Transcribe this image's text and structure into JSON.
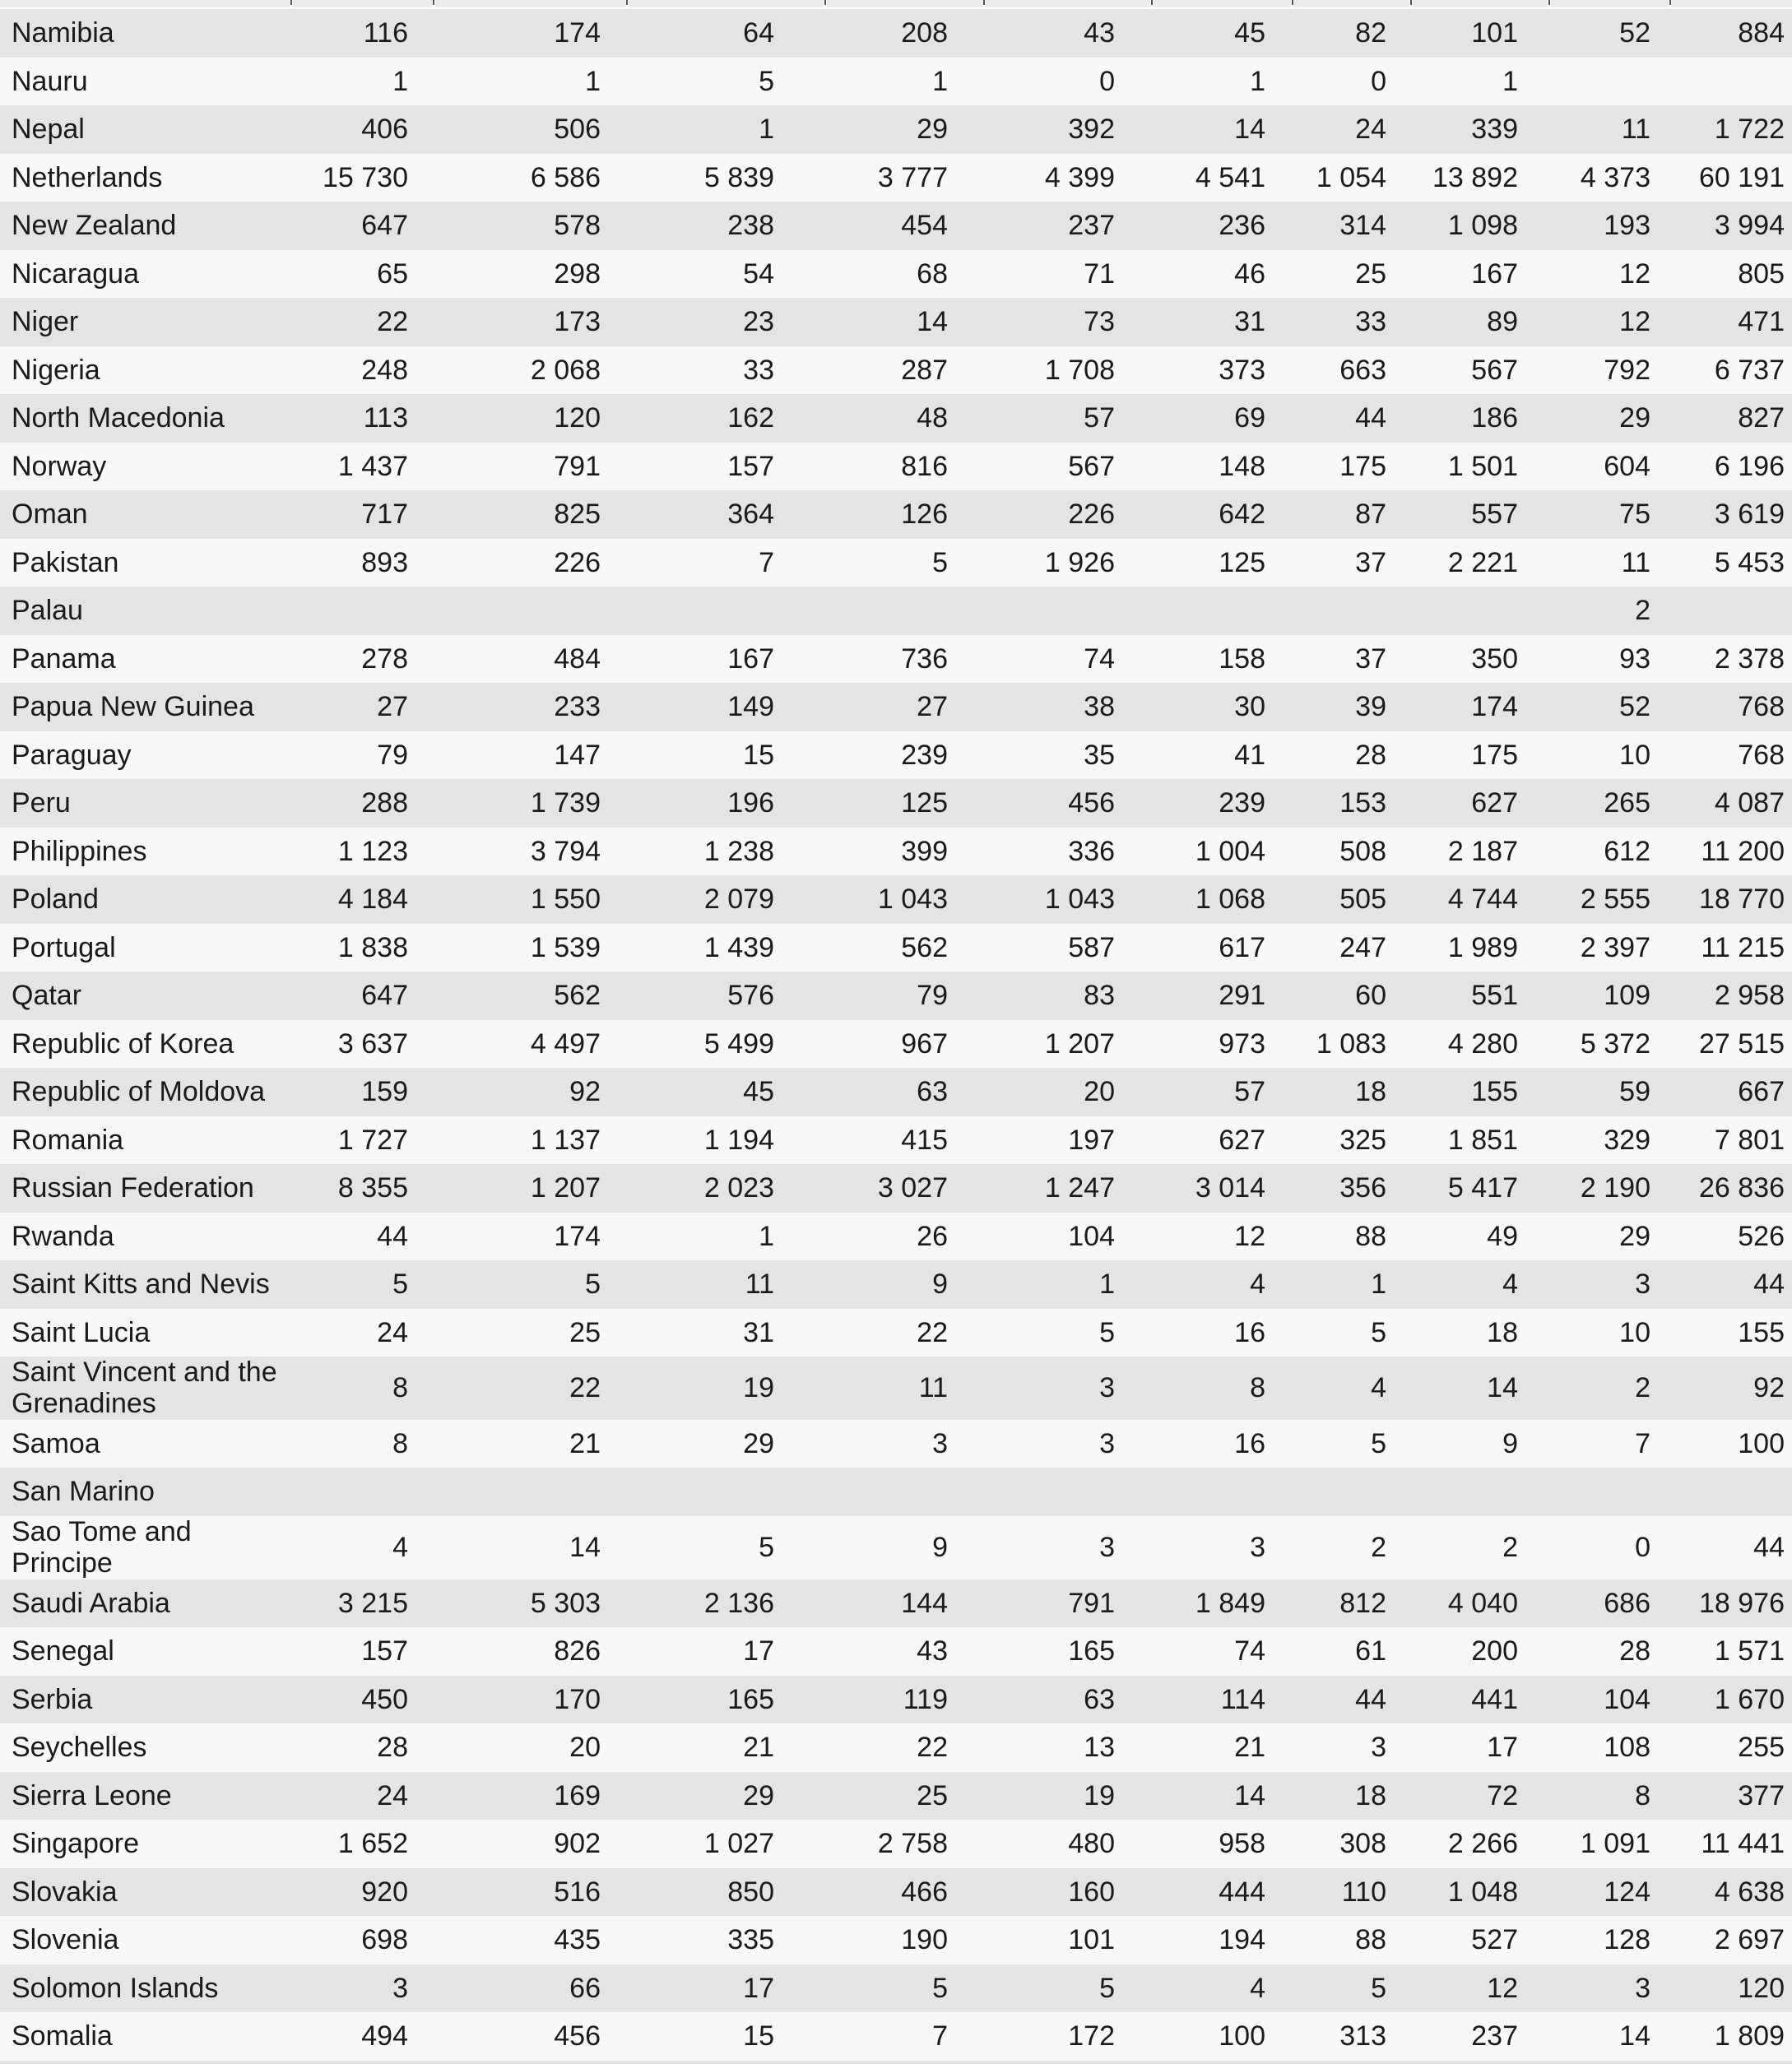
{
  "colors": {
    "row_gray": "#e4e4e4",
    "row_light": "#f8f8f8",
    "header_sliver": "#ebebeb",
    "divider_tick": "#555555",
    "text": "#1a1a1a"
  },
  "table": {
    "num_value_columns": 10,
    "rows": [
      {
        "name": "Namibia",
        "values": [
          "116",
          "174",
          "64",
          "208",
          "43",
          "45",
          "82",
          "101",
          "52",
          "884"
        ]
      },
      {
        "name": "Nauru",
        "values": [
          "1",
          "1",
          "5",
          "1",
          "0",
          "1",
          "0",
          "1",
          "",
          ""
        ]
      },
      {
        "name": "Nepal",
        "values": [
          "406",
          "506",
          "1",
          "29",
          "392",
          "14",
          "24",
          "339",
          "11",
          "1 722"
        ]
      },
      {
        "name": "Netherlands",
        "values": [
          "15 730",
          "6 586",
          "5 839",
          "3 777",
          "4 399",
          "4 541",
          "1 054",
          "13 892",
          "4 373",
          "60 191"
        ]
      },
      {
        "name": "New Zealand",
        "values": [
          "647",
          "578",
          "238",
          "454",
          "237",
          "236",
          "314",
          "1 098",
          "193",
          "3 994"
        ]
      },
      {
        "name": "Nicaragua",
        "values": [
          "65",
          "298",
          "54",
          "68",
          "71",
          "46",
          "25",
          "167",
          "12",
          "805"
        ]
      },
      {
        "name": "Niger",
        "values": [
          "22",
          "173",
          "23",
          "14",
          "73",
          "31",
          "33",
          "89",
          "12",
          "471"
        ]
      },
      {
        "name": "Nigeria",
        "values": [
          "248",
          "2 068",
          "33",
          "287",
          "1 708",
          "373",
          "663",
          "567",
          "792",
          "6 737"
        ]
      },
      {
        "name": "North Macedonia",
        "values": [
          "113",
          "120",
          "162",
          "48",
          "57",
          "69",
          "44",
          "186",
          "29",
          "827"
        ]
      },
      {
        "name": "Norway",
        "values": [
          "1 437",
          "791",
          "157",
          "816",
          "567",
          "148",
          "175",
          "1 501",
          "604",
          "6 196"
        ]
      },
      {
        "name": "Oman",
        "values": [
          "717",
          "825",
          "364",
          "126",
          "226",
          "642",
          "87",
          "557",
          "75",
          "3 619"
        ]
      },
      {
        "name": "Pakistan",
        "values": [
          "893",
          "226",
          "7",
          "5",
          "1 926",
          "125",
          "37",
          "2 221",
          "11",
          "5 453"
        ]
      },
      {
        "name": "Palau",
        "values": [
          "",
          "",
          "",
          "",
          "",
          "",
          "",
          "",
          "2",
          ""
        ]
      },
      {
        "name": "Panama",
        "values": [
          "278",
          "484",
          "167",
          "736",
          "74",
          "158",
          "37",
          "350",
          "93",
          "2 378"
        ]
      },
      {
        "name": "Papua New Guinea",
        "values": [
          "27",
          "233",
          "149",
          "27",
          "38",
          "30",
          "39",
          "174",
          "52",
          "768"
        ]
      },
      {
        "name": "Paraguay",
        "values": [
          "79",
          "147",
          "15",
          "239",
          "35",
          "41",
          "28",
          "175",
          "10",
          "768"
        ]
      },
      {
        "name": "Peru",
        "values": [
          "288",
          "1 739",
          "196",
          "125",
          "456",
          "239",
          "153",
          "627",
          "265",
          "4 087"
        ]
      },
      {
        "name": "Philippines",
        "values": [
          "1 123",
          "3 794",
          "1 238",
          "399",
          "336",
          "1 004",
          "508",
          "2 187",
          "612",
          "11 200"
        ]
      },
      {
        "name": "Poland",
        "values": [
          "4 184",
          "1 550",
          "2 079",
          "1 043",
          "1 043",
          "1 068",
          "505",
          "4 744",
          "2 555",
          "18 770"
        ]
      },
      {
        "name": "Portugal",
        "values": [
          "1 838",
          "1 539",
          "1 439",
          "562",
          "587",
          "617",
          "247",
          "1 989",
          "2 397",
          "11 215"
        ]
      },
      {
        "name": "Qatar",
        "values": [
          "647",
          "562",
          "576",
          "79",
          "83",
          "291",
          "60",
          "551",
          "109",
          "2 958"
        ]
      },
      {
        "name": "Republic of Korea",
        "values": [
          "3 637",
          "4 497",
          "5 499",
          "967",
          "1 207",
          "973",
          "1 083",
          "4 280",
          "5 372",
          "27 515"
        ]
      },
      {
        "name": "Republic of Moldova",
        "values": [
          "159",
          "92",
          "45",
          "63",
          "20",
          "57",
          "18",
          "155",
          "59",
          "667"
        ]
      },
      {
        "name": "Romania",
        "values": [
          "1 727",
          "1 137",
          "1 194",
          "415",
          "197",
          "627",
          "325",
          "1 851",
          "329",
          "7 801"
        ]
      },
      {
        "name": "Russian Federation",
        "values": [
          "8 355",
          "1 207",
          "2 023",
          "3 027",
          "1 247",
          "3 014",
          "356",
          "5 417",
          "2 190",
          "26 836"
        ]
      },
      {
        "name": "Rwanda",
        "values": [
          "44",
          "174",
          "1",
          "26",
          "104",
          "12",
          "88",
          "49",
          "29",
          "526"
        ]
      },
      {
        "name": "Saint Kitts and Nevis",
        "values": [
          "5",
          "5",
          "11",
          "9",
          "1",
          "4",
          "1",
          "4",
          "3",
          "44"
        ]
      },
      {
        "name": "Saint Lucia",
        "values": [
          "24",
          "25",
          "31",
          "22",
          "5",
          "16",
          "5",
          "18",
          "10",
          "155"
        ]
      },
      {
        "name": "Saint Vincent and the\nGrenadines",
        "values": [
          "8",
          "22",
          "19",
          "11",
          "3",
          "8",
          "4",
          "14",
          "2",
          "92"
        ]
      },
      {
        "name": "Samoa",
        "values": [
          "8",
          "21",
          "29",
          "3",
          "3",
          "16",
          "5",
          "9",
          "7",
          "100"
        ]
      },
      {
        "name": "San Marino",
        "values": [
          "",
          "",
          "",
          "",
          "",
          "",
          "",
          "",
          "",
          ""
        ]
      },
      {
        "name": "Sao Tome and Principe",
        "values": [
          "4",
          "14",
          "5",
          "9",
          "3",
          "3",
          "2",
          "2",
          "0",
          "44"
        ]
      },
      {
        "name": "Saudi Arabia",
        "values": [
          "3 215",
          "5 303",
          "2 136",
          "144",
          "791",
          "1 849",
          "812",
          "4 040",
          "686",
          "18 976"
        ]
      },
      {
        "name": "Senegal",
        "values": [
          "157",
          "826",
          "17",
          "43",
          "165",
          "74",
          "61",
          "200",
          "28",
          "1 571"
        ]
      },
      {
        "name": "Serbia",
        "values": [
          "450",
          "170",
          "165",
          "119",
          "63",
          "114",
          "44",
          "441",
          "104",
          "1 670"
        ]
      },
      {
        "name": "Seychelles",
        "values": [
          "28",
          "20",
          "21",
          "22",
          "13",
          "21",
          "3",
          "17",
          "108",
          "255"
        ]
      },
      {
        "name": "Sierra Leone",
        "values": [
          "24",
          "169",
          "29",
          "25",
          "19",
          "14",
          "18",
          "72",
          "8",
          "377"
        ]
      },
      {
        "name": "Singapore",
        "values": [
          "1 652",
          "902",
          "1 027",
          "2 758",
          "480",
          "958",
          "308",
          "2 266",
          "1 091",
          "11 441"
        ]
      },
      {
        "name": "Slovakia",
        "values": [
          "920",
          "516",
          "850",
          "466",
          "160",
          "444",
          "110",
          "1 048",
          "124",
          "4 638"
        ]
      },
      {
        "name": "Slovenia",
        "values": [
          "698",
          "435",
          "335",
          "190",
          "101",
          "194",
          "88",
          "527",
          "128",
          "2 697"
        ]
      },
      {
        "name": "Solomon Islands",
        "values": [
          "3",
          "66",
          "17",
          "5",
          "5",
          "4",
          "5",
          "12",
          "3",
          "120"
        ]
      },
      {
        "name": "Somalia",
        "values": [
          "494",
          "456",
          "15",
          "7",
          "172",
          "100",
          "313",
          "237",
          "14",
          "1 809"
        ]
      }
    ]
  }
}
